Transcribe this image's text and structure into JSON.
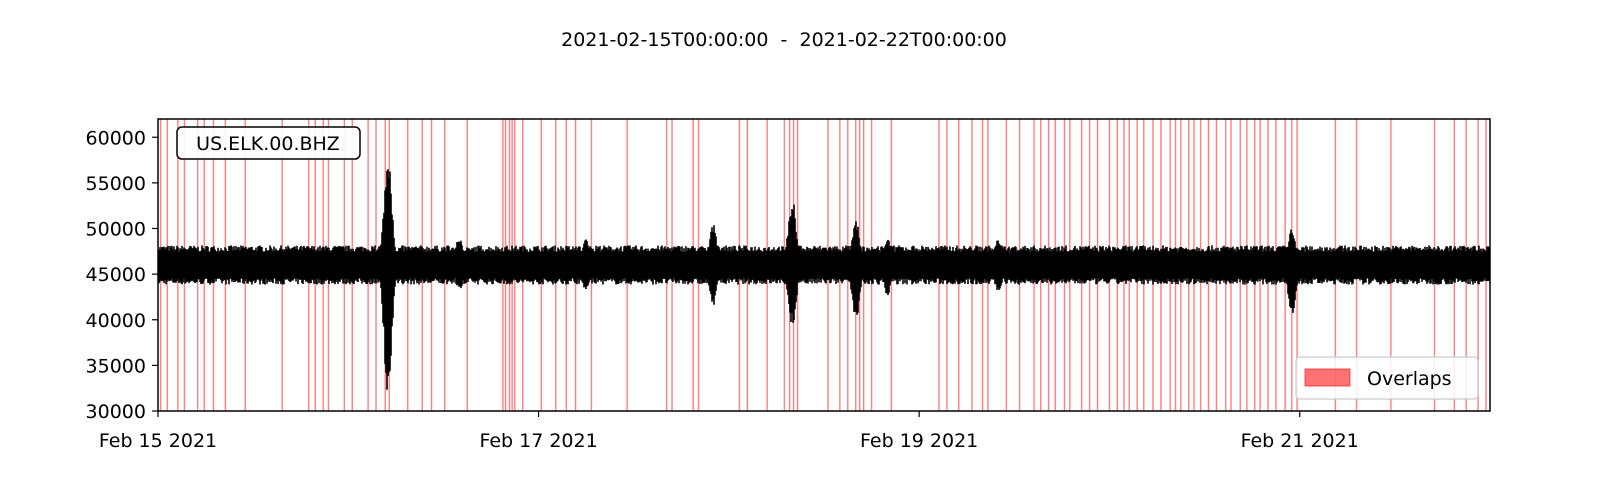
{
  "chart_data": {
    "type": "line",
    "title": "2021-02-15T00:00:00  -  2021-02-22T00:00:00",
    "trace_label": "US.ELK.00.BHZ",
    "xlabel": "",
    "ylabel": "",
    "x_range": [
      "2021-02-15T00:00:00",
      "2021-02-22T00:00:00"
    ],
    "ylim": [
      30000,
      62000
    ],
    "y_ticks": [
      30000,
      35000,
      40000,
      45000,
      50000,
      55000,
      60000
    ],
    "x_ticks": [
      {
        "date": "2021-02-15",
        "label": "Feb 15 2021"
      },
      {
        "date": "2021-02-17",
        "label": "Feb 17 2021"
      },
      {
        "date": "2021-02-19",
        "label": "Feb 19 2021"
      },
      {
        "date": "2021-02-21",
        "label": "Feb 21 2021"
      }
    ],
    "grid": false,
    "legend": {
      "entries": [
        "Overlaps"
      ],
      "placement": "lower-right"
    },
    "colors": {
      "trace": "#000000",
      "overlap": "#ff0000"
    },
    "series": [
      {
        "baseline": 46000,
        "noise_band": [
          44200,
          47800
        ],
        "events": [
          {
            "time": "2021-02-16T05:00",
            "max": 58000,
            "min": 31000
          },
          {
            "time": "2021-02-16T14:00",
            "max": 49000,
            "min": 43000
          },
          {
            "time": "2021-02-17T06:00",
            "max": 49000,
            "min": 43000
          },
          {
            "time": "2021-02-17T22:00",
            "max": 50500,
            "min": 41500
          },
          {
            "time": "2021-02-18T08:00",
            "max": 53500,
            "min": 39000
          },
          {
            "time": "2021-02-18T16:00",
            "max": 51000,
            "min": 39500
          },
          {
            "time": "2021-02-18T20:00",
            "max": 49000,
            "min": 42500
          },
          {
            "time": "2021-02-19T10:00",
            "max": 49000,
            "min": 43000
          },
          {
            "time": "2021-02-20T23:00",
            "max": 50000,
            "min": 40000
          }
        ]
      }
    ],
    "overlaps": [
      "2021-02-15T00:20",
      "2021-02-15T01:10",
      "2021-02-15T02:30",
      "2021-02-15T03:20",
      "2021-02-15T05:00",
      "2021-02-15T05:50",
      "2021-02-15T07:00",
      "2021-02-15T08:30",
      "2021-02-15T11:00",
      "2021-02-15T15:40",
      "2021-02-15T19:00",
      "2021-02-15T19:50",
      "2021-02-15T20:50",
      "2021-02-15T21:30",
      "2021-02-15T23:30",
      "2021-02-16T00:30",
      "2021-02-16T02:30",
      "2021-02-16T03:30",
      "2021-02-16T04:40",
      "2021-02-16T05:10",
      "2021-02-16T07:30",
      "2021-02-16T09:20",
      "2021-02-16T10:30",
      "2021-02-16T12:10",
      "2021-02-16T15:00",
      "2021-02-16T19:30",
      "2021-02-16T19:50",
      "2021-02-16T20:20",
      "2021-02-16T20:40",
      "2021-02-16T21:00",
      "2021-02-16T22:00",
      "2021-02-17T00:20",
      "2021-02-17T02:10",
      "2021-02-17T03:30",
      "2021-02-17T04:40",
      "2021-02-17T06:40",
      "2021-02-17T11:10",
      "2021-02-17T16:10",
      "2021-02-17T16:50",
      "2021-02-17T19:30",
      "2021-02-17T20:10",
      "2021-02-18T01:20",
      "2021-02-18T02:20",
      "2021-02-18T04:50",
      "2021-02-18T07:00",
      "2021-02-18T07:40",
      "2021-02-18T08:10",
      "2021-02-18T08:40",
      "2021-02-18T12:30",
      "2021-02-18T14:00",
      "2021-02-18T15:00",
      "2021-02-18T16:00",
      "2021-02-18T16:30",
      "2021-02-18T17:00",
      "2021-02-18T18:00",
      "2021-02-18T20:30",
      "2021-02-19T02:30",
      "2021-02-19T03:30",
      "2021-02-19T05:00",
      "2021-02-19T06:40",
      "2021-02-19T08:00",
      "2021-02-19T08:40",
      "2021-02-19T11:00",
      "2021-02-19T12:40",
      "2021-02-19T14:30",
      "2021-02-19T15:20",
      "2021-02-19T16:20",
      "2021-02-19T17:10",
      "2021-02-19T18:20",
      "2021-02-19T19:00",
      "2021-02-19T20:30",
      "2021-02-19T21:30",
      "2021-02-19T22:30",
      "2021-02-20T00:00",
      "2021-02-20T01:00",
      "2021-02-20T01:50",
      "2021-02-20T02:30",
      "2021-02-20T03:30",
      "2021-02-20T04:20",
      "2021-02-20T05:30",
      "2021-02-20T06:30",
      "2021-02-20T07:40",
      "2021-02-20T08:20",
      "2021-02-20T09:00",
      "2021-02-20T10:00",
      "2021-02-20T10:40",
      "2021-02-20T11:30",
      "2021-02-20T12:30",
      "2021-02-20T13:30",
      "2021-02-20T14:40",
      "2021-02-20T15:20",
      "2021-02-20T16:30",
      "2021-02-20T17:20",
      "2021-02-20T18:20",
      "2021-02-20T19:00",
      "2021-02-20T20:00",
      "2021-02-20T21:00",
      "2021-02-20T22:10",
      "2021-02-20T23:00",
      "2021-02-20T23:40",
      "2021-02-21T04:30",
      "2021-02-21T07:10",
      "2021-02-21T11:30",
      "2021-02-21T17:00",
      "2021-02-21T19:30",
      "2021-02-21T21:00",
      "2021-02-21T22:30",
      "2021-02-21T23:30"
    ]
  }
}
